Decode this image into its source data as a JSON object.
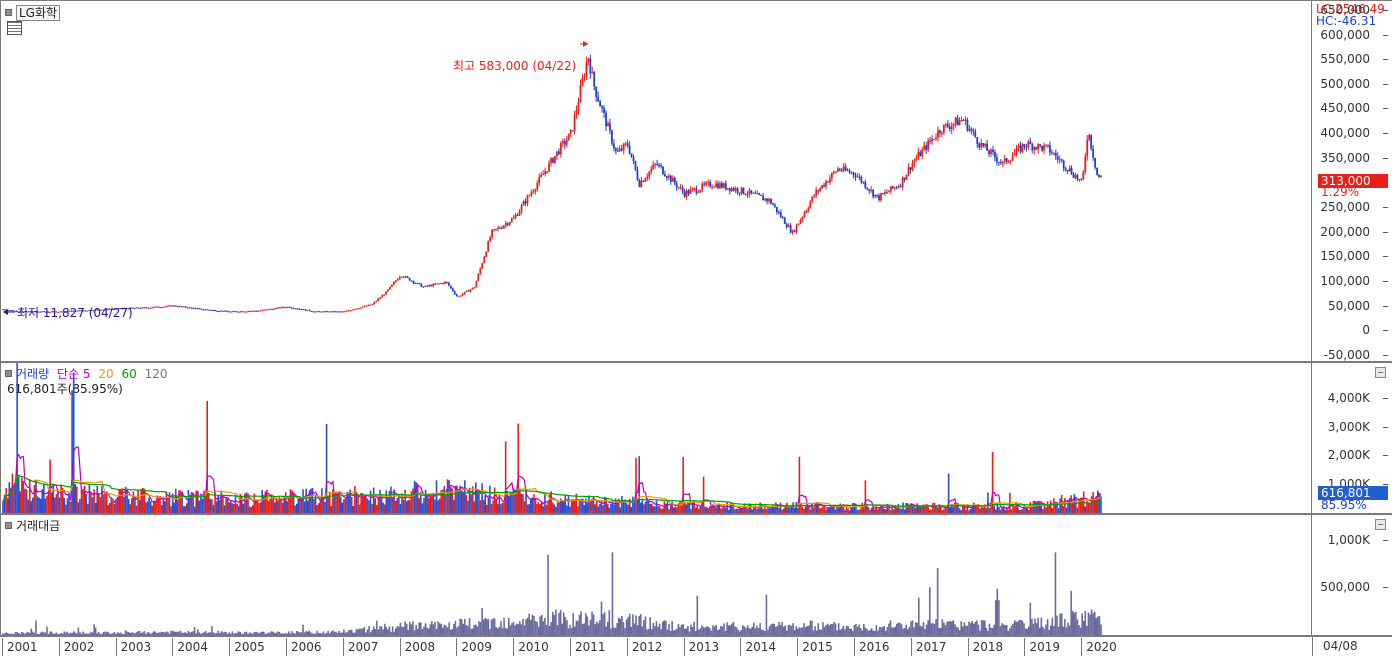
{
  "price_pane": {
    "title": "LG화학",
    "lc_label": "LC:2546.49",
    "hc_label": "HC:-46.31",
    "current_price": "313,000",
    "change_pct": "1.29%",
    "high_annotation": "최고 583,000 (04/22)",
    "low_annotation": "최저 11,827 (04/27)",
    "colors": {
      "up": "#e8201b",
      "down": "#1f3fd0",
      "label_bg": "#e8201b",
      "low_color": "#1a1aa8"
    }
  },
  "volume_pane": {
    "title": "거래량",
    "ma_label": "단순",
    "ma_periods": [
      "5",
      "20",
      "60",
      "120"
    ],
    "ma_colors": [
      "#c000c0",
      "#e0a000",
      "#00a000",
      "#7a7a7a"
    ],
    "summary": "616,801주(85.95%)",
    "current_volume": "616,801",
    "current_pct": "85.95%"
  },
  "value_pane": {
    "title": "거래대금"
  },
  "x_axis": {
    "years": [
      "2001",
      "2002",
      "2003",
      "2004",
      "2005",
      "2006",
      "2007",
      "2008",
      "2009",
      "2010",
      "2011",
      "2012",
      "2013",
      "2014",
      "2015",
      "2016",
      "2017",
      "2018",
      "2019",
      "2020"
    ],
    "date_label": "04/08"
  },
  "chart_data": [
    {
      "type": "line",
      "title": "LG화학",
      "y_ticks": [
        "650,000",
        "600,000",
        "550,000",
        "500,000",
        "450,000",
        "400,000",
        "350,000",
        "300,000",
        "250,000",
        "200,000",
        "150,000",
        "100,000",
        "50,000",
        "0",
        "-50,000"
      ],
      "ylim": [
        -60000,
        670000
      ],
      "x": [
        2001.0,
        2001.3,
        2002.0,
        2002.5,
        2003.0,
        2003.5,
        2004.0,
        2004.5,
        2005.0,
        2005.5,
        2006.0,
        2006.5,
        2007.0,
        2007.5,
        2007.75,
        2008.0,
        2008.4,
        2008.8,
        2009.0,
        2009.3,
        2009.6,
        2010.0,
        2010.4,
        2010.8,
        2011.0,
        2011.3,
        2011.4,
        2011.8,
        2012.0,
        2012.2,
        2012.5,
        2013.0,
        2013.5,
        2014.0,
        2014.5,
        2014.9,
        2015.3,
        2015.7,
        2016.0,
        2016.4,
        2016.8,
        2017.0,
        2017.5,
        2017.9,
        2018.2,
        2018.6,
        2019.0,
        2019.4,
        2019.8,
        2020.0,
        2020.1,
        2020.27
      ],
      "values": [
        45000,
        40000,
        40000,
        43000,
        46000,
        48000,
        52000,
        45000,
        40000,
        42000,
        50000,
        40000,
        40000,
        55000,
        80000,
        115000,
        90000,
        100000,
        70000,
        90000,
        200000,
        230000,
        300000,
        370000,
        400000,
        560000,
        500000,
        360000,
        380000,
        300000,
        340000,
        280000,
        300000,
        285000,
        265000,
        200000,
        280000,
        330000,
        320000,
        270000,
        300000,
        340000,
        410000,
        430000,
        380000,
        340000,
        380000,
        370000,
        325000,
        300000,
        410000,
        313000
      ],
      "annotations": [
        "최고 583,000 (04/22)",
        "최저 11,827 (04/27)"
      ]
    },
    {
      "type": "bar",
      "title": "거래량",
      "y_ticks": [
        "4,000K",
        "3,000K",
        "2,000K",
        "1,000K"
      ],
      "ylim": [
        0,
        4500
      ],
      "x": [
        2001.0,
        2002.0,
        2003.0,
        2004.0,
        2005.0,
        2006.0,
        2007.0,
        2008.0,
        2009.0,
        2010.0,
        2011.0,
        2012.0,
        2013.0,
        2014.0,
        2015.0,
        2016.0,
        2017.0,
        2018.0,
        2019.0,
        2020.0
      ],
      "values": [
        900,
        700,
        600,
        550,
        500,
        550,
        600,
        700,
        750,
        550,
        450,
        400,
        250,
        230,
        250,
        230,
        230,
        230,
        230,
        500
      ]
    },
    {
      "type": "bar",
      "title": "거래대금",
      "y_ticks": [
        "1,000K",
        "500,000"
      ],
      "ylim": [
        0,
        1150000
      ],
      "x": [
        2001.0,
        2002.0,
        2003.0,
        2004.0,
        2005.0,
        2006.0,
        2007.0,
        2008.0,
        2009.0,
        2010.0,
        2011.0,
        2012.0,
        2013.0,
        2014.0,
        2015.0,
        2016.0,
        2017.0,
        2018.0,
        2019.0,
        2020.0
      ],
      "values": [
        20000,
        25000,
        25000,
        30000,
        25000,
        25000,
        40000,
        90000,
        110000,
        150000,
        180000,
        160000,
        90000,
        90000,
        100000,
        90000,
        110000,
        110000,
        100000,
        180000
      ]
    }
  ]
}
